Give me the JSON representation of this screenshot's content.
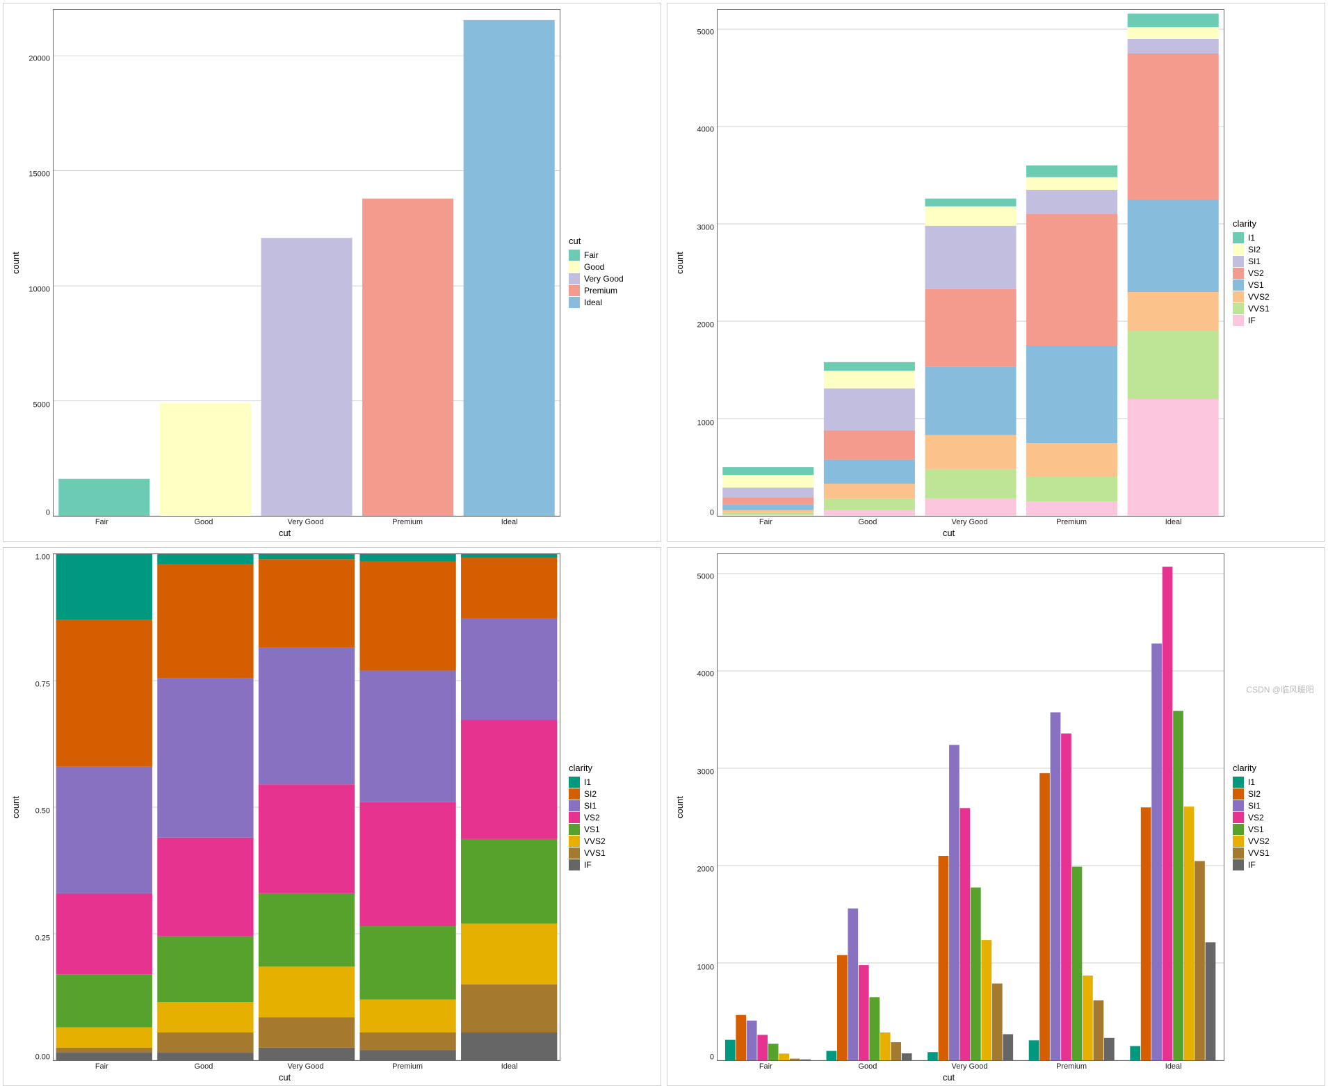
{
  "watermark": "CSDN @临风暖阳",
  "common": {
    "xlabel": "cut",
    "ylabel": "count",
    "categories": [
      "Fair",
      "Good",
      "Very Good",
      "Premium",
      "Ideal"
    ],
    "grid_color": "#bfbfbf",
    "panel_border": "#666666",
    "background": "#ffffff",
    "label_fontsize": 13,
    "tick_fontsize": 11
  },
  "clarity_levels": [
    "I1",
    "SI2",
    "SI1",
    "VS2",
    "VS1",
    "VVS2",
    "VVS1",
    "IF"
  ],
  "chart_tl": {
    "type": "bar",
    "legend_title": "cut",
    "legend_items": [
      "Fair",
      "Good",
      "Very Good",
      "Premium",
      "Ideal"
    ],
    "legend_colors": [
      "#6bccb3",
      "#feffc3",
      "#c1bedf",
      "#f59b8e",
      "#87bcdc"
    ],
    "values": [
      1610,
      4906,
      12082,
      13791,
      21551
    ],
    "bar_colors": [
      "#6bccb3",
      "#feffc3",
      "#c1bedf",
      "#f59b8e",
      "#87bcdc"
    ],
    "ylim": [
      0,
      22000
    ],
    "yticks": [
      0,
      5000,
      10000,
      15000,
      20000
    ],
    "bar_width": 0.9
  },
  "chart_tr": {
    "type": "stacked_bar",
    "legend_title": "clarity",
    "legend_items": [
      "I1",
      "SI2",
      "SI1",
      "VS2",
      "VS1",
      "VVS2",
      "VVS1",
      "IF"
    ],
    "legend_colors": [
      "#6bccb3",
      "#feffc3",
      "#c1bedf",
      "#f59b8e",
      "#87bcdc",
      "#fcc28b",
      "#bee495",
      "#fbc6de"
    ],
    "series_colors": [
      "#6bccb3",
      "#feffc3",
      "#c1bedf",
      "#f59b8e",
      "#87bcdc",
      "#fcc28b",
      "#bee495",
      "#fbc6de"
    ],
    "stacks": {
      "Fair": {
        "I1": 80,
        "SI2": 130,
        "SI1": 100,
        "VS2": 70,
        "VS1": 60,
        "VVS2": 30,
        "VVS1": 20,
        "IF": 10
      },
      "Good": {
        "I1": 90,
        "SI2": 180,
        "SI1": 430,
        "VS2": 300,
        "VS1": 250,
        "VVS2": 150,
        "VVS1": 120,
        "IF": 60
      },
      "Very Good": {
        "I1": 80,
        "SI2": 200,
        "SI1": 650,
        "VS2": 800,
        "VS1": 700,
        "VVS2": 350,
        "VVS1": 300,
        "IF": 180
      },
      "Premium": {
        "I1": 120,
        "SI2": 130,
        "SI1": 250,
        "VS2": 1350,
        "VS1": 1000,
        "VVS2": 350,
        "VVS1": 250,
        "IF": 150
      },
      "Ideal": {
        "I1": 140,
        "SI2": 120,
        "SI1": 150,
        "VS2": 1500,
        "VS1": 950,
        "VVS2": 400,
        "VVS1": 700,
        "IF": 1200
      }
    },
    "ylim": [
      0,
      5200
    ],
    "yticks": [
      0,
      1000,
      2000,
      3000,
      4000,
      5000
    ],
    "bar_width": 0.9
  },
  "chart_bl": {
    "type": "stacked_bar_fill",
    "legend_title": "clarity",
    "legend_items": [
      "I1",
      "SI2",
      "SI1",
      "VS2",
      "VS1",
      "VVS2",
      "VVS1",
      "IF"
    ],
    "legend_colors": [
      "#009980",
      "#d55e00",
      "#8971c1",
      "#e6338f",
      "#56a22d",
      "#e6b000",
      "#a67a2e",
      "#666666"
    ],
    "series_colors": [
      "#009980",
      "#d55e00",
      "#8971c1",
      "#e6338f",
      "#56a22d",
      "#e6b000",
      "#a67a2e",
      "#666666"
    ],
    "stacks": {
      "Fair": {
        "I1": 0.13,
        "SI2": 0.29,
        "SI1": 0.25,
        "VS2": 0.16,
        "VS1": 0.105,
        "VVS2": 0.04,
        "VVS1": 0.01,
        "IF": 0.015
      },
      "Good": {
        "I1": 0.02,
        "SI2": 0.225,
        "SI1": 0.315,
        "VS2": 0.195,
        "VS1": 0.13,
        "VVS2": 0.06,
        "VVS1": 0.04,
        "IF": 0.015
      },
      "Very Good": {
        "I1": 0.01,
        "SI2": 0.175,
        "SI1": 0.27,
        "VS2": 0.215,
        "VS1": 0.145,
        "VVS2": 0.1,
        "VVS1": 0.06,
        "IF": 0.025
      },
      "Premium": {
        "I1": 0.015,
        "SI2": 0.215,
        "SI1": 0.26,
        "VS2": 0.245,
        "VS1": 0.145,
        "VVS2": 0.065,
        "VVS1": 0.035,
        "IF": 0.02
      },
      "Ideal": {
        "I1": 0.007,
        "SI2": 0.12,
        "SI1": 0.2,
        "VS2": 0.236,
        "VS1": 0.167,
        "VVS2": 0.12,
        "VVS1": 0.095,
        "IF": 0.055
      }
    },
    "ylim": [
      0,
      1.0
    ],
    "yticks": [
      0.0,
      0.25,
      0.5,
      0.75,
      1.0
    ],
    "ytick_labels": [
      "0.00",
      "0.25",
      "0.50",
      "0.75",
      "1.00"
    ],
    "bar_width": 0.95
  },
  "chart_br": {
    "type": "grouped_bar",
    "legend_title": "clarity",
    "legend_items": [
      "I1",
      "SI2",
      "SI1",
      "VS2",
      "VS1",
      "VVS2",
      "VVS1",
      "IF"
    ],
    "legend_colors": [
      "#009980",
      "#d55e00",
      "#8971c1",
      "#e6338f",
      "#56a22d",
      "#e6b000",
      "#a67a2e",
      "#666666"
    ],
    "series_colors": [
      "#009980",
      "#d55e00",
      "#8971c1",
      "#e6338f",
      "#56a22d",
      "#e6b000",
      "#a67a2e",
      "#666666"
    ],
    "groups": {
      "Fair": {
        "I1": 210,
        "SI2": 466,
        "SI1": 408,
        "VS2": 261,
        "VS1": 170,
        "VVS2": 69,
        "VVS1": 17,
        "IF": 9
      },
      "Good": {
        "I1": 96,
        "SI2": 1081,
        "SI1": 1560,
        "VS2": 978,
        "VS1": 648,
        "VVS2": 286,
        "VVS1": 186,
        "IF": 71
      },
      "Very Good": {
        "I1": 84,
        "SI2": 2100,
        "SI1": 3240,
        "VS2": 2591,
        "VS1": 1775,
        "VVS2": 1235,
        "VVS1": 789,
        "IF": 268
      },
      "Premium": {
        "I1": 205,
        "SI2": 2949,
        "SI1": 3575,
        "VS2": 3357,
        "VS1": 1989,
        "VVS2": 870,
        "VVS1": 616,
        "IF": 230
      },
      "Ideal": {
        "I1": 146,
        "SI2": 2598,
        "SI1": 4282,
        "VS2": 5071,
        "VS1": 3589,
        "VVS2": 2606,
        "VVS1": 2047,
        "IF": 1212
      }
    },
    "ylim": [
      0,
      5200
    ],
    "yticks": [
      0,
      1000,
      2000,
      3000,
      4000,
      5000
    ],
    "bar_width": 0.85
  }
}
